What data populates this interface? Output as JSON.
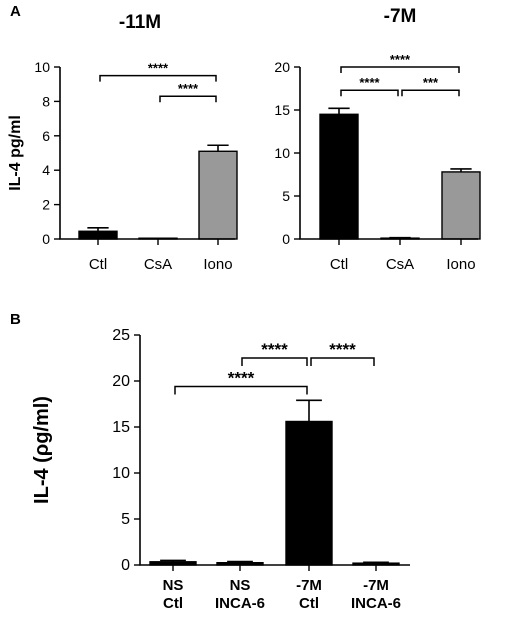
{
  "chart_data": [
    {
      "panel_label": "A",
      "type": "bar",
      "title": "-11M",
      "ylabel": "IL-4 pg/ml",
      "ylim": [
        0,
        10
      ],
      "yticks": [
        0,
        2,
        4,
        6,
        8,
        10
      ],
      "categories": [
        "Ctl",
        "CsA",
        "Iono"
      ],
      "values": [
        0.45,
        0.0,
        5.1
      ],
      "errors": [
        0.2,
        0.0,
        0.35
      ],
      "bar_colors": [
        "#000000",
        "#000000",
        "#999999"
      ],
      "significance": [
        {
          "from": 0,
          "to": 2,
          "label": "****",
          "y": 9.5
        },
        {
          "from": 1,
          "to": 2,
          "label": "****",
          "y": 8.3
        }
      ]
    },
    {
      "type": "bar",
      "title": "-7M",
      "ylim": [
        0,
        20
      ],
      "yticks": [
        0,
        5,
        10,
        15,
        20
      ],
      "categories": [
        "Ctl",
        "CsA",
        "Iono"
      ],
      "values": [
        14.5,
        0.1,
        7.8
      ],
      "errors": [
        0.7,
        0.05,
        0.35
      ],
      "bar_colors": [
        "#000000",
        "#000000",
        "#999999"
      ],
      "significance": [
        {
          "from": 0,
          "to": 2,
          "label": "****",
          "y": 20.0
        },
        {
          "from": 0,
          "to": 1,
          "label": "****",
          "y": 17.3
        },
        {
          "from": 1,
          "to": 2,
          "label": "***",
          "y": 17.3
        }
      ]
    },
    {
      "panel_label": "B",
      "type": "bar",
      "ylabel": "IL-4 (ρg/ml)",
      "ylim": [
        0,
        25
      ],
      "yticks": [
        0,
        5,
        10,
        15,
        20,
        25
      ],
      "categories": [
        [
          "NS",
          "Ctl"
        ],
        [
          "NS",
          "INCA-6"
        ],
        [
          "-7M",
          "Ctl"
        ],
        [
          "-7M",
          "INCA-6"
        ]
      ],
      "values": [
        0.35,
        0.25,
        15.6,
        0.2
      ],
      "errors": [
        0.15,
        0.12,
        2.3,
        0.1
      ],
      "bar_colors": [
        "#000000",
        "#000000",
        "#000000",
        "#000000"
      ],
      "significance": [
        {
          "from": 0,
          "to": 2,
          "label": "****",
          "y": 19.4
        },
        {
          "from": 1,
          "to": 2,
          "label": "****",
          "y": 22.5
        },
        {
          "from": 2,
          "to": 3,
          "label": "****",
          "y": 22.5
        }
      ]
    }
  ]
}
